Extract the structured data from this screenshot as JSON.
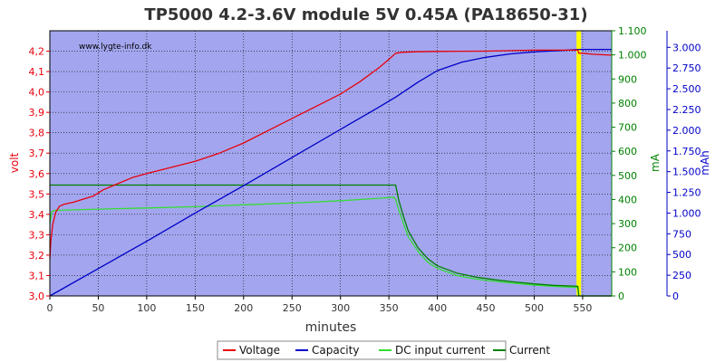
{
  "chart_data": {
    "type": "line",
    "title": "TP5000 4.2-3.6V module 5V 0.45A (PA18650-31)",
    "watermark": "www.lygte-info.dk",
    "xlabel": "minutes",
    "x_ticks": [
      0,
      50,
      100,
      150,
      200,
      250,
      300,
      350,
      400,
      450,
      500,
      550
    ],
    "xlim": [
      0,
      580
    ],
    "axes": {
      "volt": {
        "label": "volt",
        "color": "#e8000b",
        "side": "left",
        "lim": [
          3.0,
          4.3
        ],
        "ticks": [
          3.0,
          3.1,
          3.2,
          3.3,
          3.4,
          3.5,
          3.6,
          3.7,
          3.8,
          3.9,
          4.0,
          4.1,
          4.2
        ],
        "tick_labels": [
          "3,0",
          "3,1",
          "3,2",
          "3,3",
          "3,4",
          "3,5",
          "3,6",
          "3,7",
          "3,8",
          "3,9",
          "4,0",
          "4,1",
          "4,2"
        ]
      },
      "mA": {
        "label": "mA",
        "color": "#008000",
        "side": "right",
        "lim": [
          0,
          1100
        ],
        "ticks": [
          0,
          100,
          200,
          300,
          400,
          500,
          600,
          700,
          800,
          900,
          1000,
          1100
        ],
        "tick_labels": [
          "0",
          "100",
          "200",
          "300",
          "400",
          "500",
          "600",
          "700",
          "800",
          "900",
          "1.000",
          "1.100"
        ]
      },
      "mAh": {
        "label": "mAh",
        "color": "#0000c8",
        "side": "right",
        "lim": [
          0,
          3200
        ],
        "ticks": [
          0,
          250,
          500,
          750,
          1000,
          1250,
          1500,
          1750,
          2000,
          2250,
          2500,
          2750,
          3000
        ],
        "tick_labels": [
          "0",
          "250",
          "500",
          "750",
          "1.000",
          "1.250",
          "1.500",
          "1.750",
          "2.000",
          "2.250",
          "2.500",
          "2.750",
          "3.000"
        ]
      }
    },
    "grid": true,
    "legend_position": "bottom-center",
    "end_marker": {
      "x": 546,
      "color": "#ffff00"
    },
    "series": [
      {
        "name": "Voltage",
        "axis": "volt",
        "color": "#e8000b",
        "x": [
          0,
          1,
          3,
          6,
          10,
          15,
          25,
          35,
          45,
          55,
          70,
          85,
          100,
          125,
          150,
          175,
          200,
          225,
          250,
          275,
          300,
          320,
          340,
          350,
          357,
          365,
          380,
          400,
          450,
          500,
          545,
          546,
          550,
          560,
          580
        ],
        "y": [
          3.18,
          3.27,
          3.35,
          3.41,
          3.44,
          3.45,
          3.46,
          3.475,
          3.49,
          3.52,
          3.55,
          3.58,
          3.6,
          3.63,
          3.66,
          3.7,
          3.75,
          3.81,
          3.87,
          3.93,
          3.99,
          4.05,
          4.12,
          4.16,
          4.19,
          4.195,
          4.197,
          4.199,
          4.2,
          4.205,
          4.205,
          4.19,
          4.19,
          4.185,
          4.18
        ]
      },
      {
        "name": "Capacity",
        "axis": "mAh",
        "color": "#0000c8",
        "x": [
          0,
          50,
          100,
          150,
          200,
          250,
          300,
          340,
          357,
          380,
          400,
          425,
          450,
          475,
          500,
          525,
          546,
          580
        ],
        "y": [
          0,
          330,
          660,
          1000,
          1330,
          1670,
          2010,
          2280,
          2400,
          2580,
          2720,
          2820,
          2880,
          2920,
          2945,
          2960,
          2975,
          2975
        ]
      },
      {
        "name": "DC input current",
        "axis": "mA",
        "color": "#33dd33",
        "x": [
          0,
          2,
          5,
          10,
          50,
          100,
          150,
          200,
          250,
          300,
          340,
          355,
          357,
          360,
          365,
          370,
          380,
          390,
          400,
          420,
          440,
          460,
          480,
          500,
          520,
          545,
          546,
          580
        ],
        "y": [
          300,
          350,
          355,
          355,
          360,
          365,
          370,
          378,
          385,
          395,
          405,
          410,
          400,
          360,
          300,
          245,
          185,
          140,
          115,
          85,
          70,
          60,
          52,
          45,
          40,
          35,
          0,
          0
        ]
      },
      {
        "name": "Current",
        "axis": "mA",
        "color": "#008000",
        "x": [
          0,
          357,
          360,
          365,
          370,
          380,
          390,
          400,
          420,
          440,
          460,
          480,
          500,
          520,
          545,
          546,
          580
        ],
        "y": [
          460,
          460,
          400,
          330,
          270,
          200,
          155,
          125,
          95,
          78,
          67,
          58,
          50,
          44,
          40,
          0,
          0
        ]
      }
    ]
  }
}
